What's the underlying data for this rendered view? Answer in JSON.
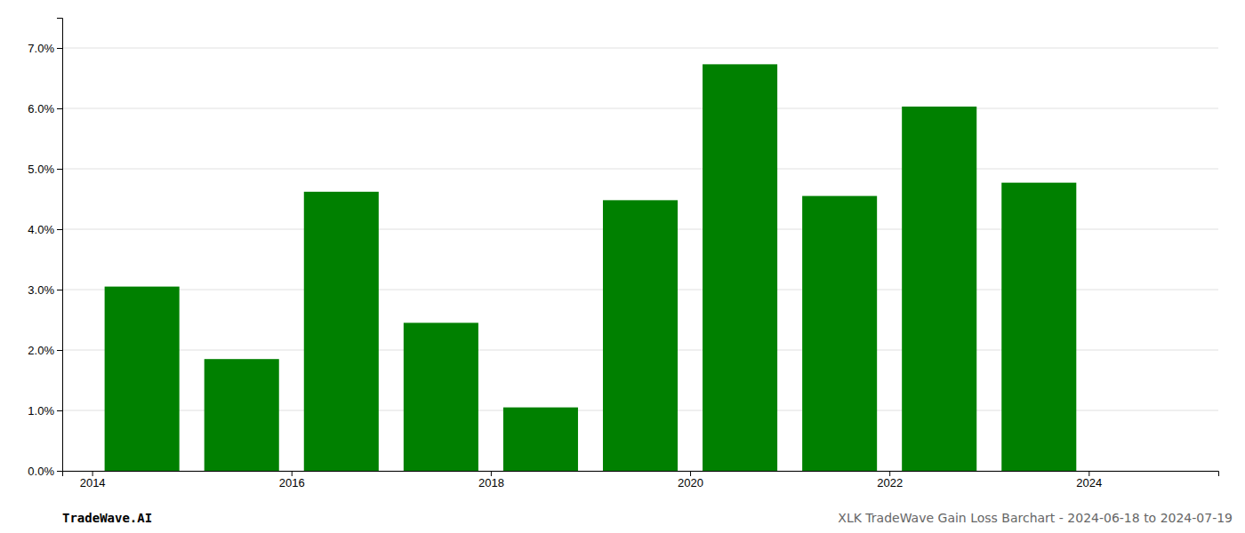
{
  "chart_data": {
    "type": "bar",
    "x": [
      2014,
      2015,
      2016,
      2017,
      2018,
      2019,
      2020,
      2021,
      2022,
      2023
    ],
    "values": [
      0.0305,
      0.0185,
      0.0462,
      0.0245,
      0.0105,
      0.0448,
      0.0673,
      0.0455,
      0.0603,
      0.0477
    ],
    "color": "#008000",
    "xlim": [
      2013.2,
      2024.8
    ],
    "xticks": [
      {
        "value": 2013.5,
        "label": "2014"
      },
      {
        "value": 2015.5,
        "label": "2016"
      },
      {
        "value": 2017.5,
        "label": "2018"
      },
      {
        "value": 2019.5,
        "label": "2020"
      },
      {
        "value": 2021.5,
        "label": "2022"
      },
      {
        "value": 2023.5,
        "label": "2024"
      }
    ],
    "ylim": [
      0,
      0.075
    ],
    "yticks": [
      {
        "value": 0.0,
        "label": "0.0%"
      },
      {
        "value": 0.01,
        "label": "1.0%"
      },
      {
        "value": 0.02,
        "label": "2.0%"
      },
      {
        "value": 0.03,
        "label": "3.0%"
      },
      {
        "value": 0.04,
        "label": "4.0%"
      },
      {
        "value": 0.05,
        "label": "5.0%"
      },
      {
        "value": 0.06,
        "label": "6.0%"
      },
      {
        "value": 0.07,
        "label": "7.0%"
      }
    ],
    "grid": true,
    "annotations": [
      "TradeWave.AI",
      "XLK TradeWave Gain Loss Barchart - 2024-06-18 to 2024-07-19"
    ]
  }
}
